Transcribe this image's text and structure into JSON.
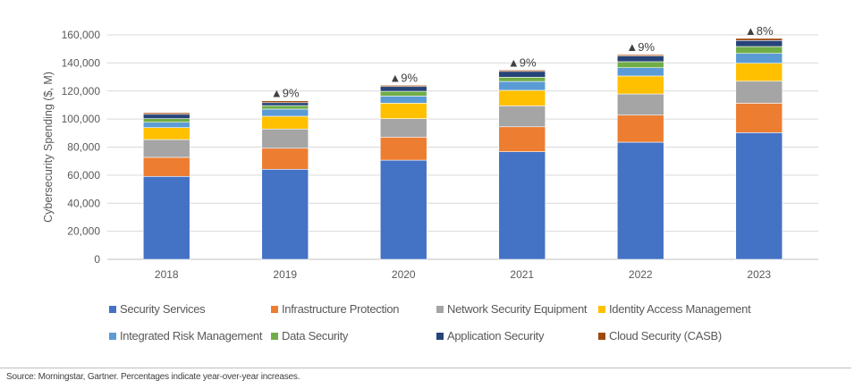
{
  "chart_data": {
    "type": "bar",
    "stacked": true,
    "categories": [
      "2018",
      "2019",
      "2020",
      "2021",
      "2022",
      "2023"
    ],
    "ylabel": "Cybersecurity Spending ($, M)",
    "ylim": [
      0,
      160000
    ],
    "yticks": [
      0,
      20000,
      40000,
      60000,
      80000,
      100000,
      120000,
      140000,
      160000
    ],
    "ytick_labels": [
      "0",
      "20,000",
      "40,000",
      "60,000",
      "80,000",
      "100,000",
      "120,000",
      "140,000",
      "160,000"
    ],
    "grid": true,
    "legend_position": "bottom",
    "series": [
      {
        "name": "Security Services",
        "color": "#4472C4",
        "values": [
          59100,
          64200,
          70700,
          76700,
          83500,
          90300
        ]
      },
      {
        "name": "Infrastructure Protection",
        "color": "#ED7D31",
        "values": [
          13600,
          15000,
          16400,
          17800,
          19300,
          21000
        ]
      },
      {
        "name": "Network Security Equipment",
        "color": "#A5A5A5",
        "values": [
          12700,
          13700,
          13200,
          14900,
          15100,
          15700
        ]
      },
      {
        "name": "Identity Access Management",
        "color": "#FFC000",
        "values": [
          8500,
          9100,
          11000,
          11100,
          12800,
          12800
        ]
      },
      {
        "name": "Integrated Risk Management",
        "color": "#5B9BD5",
        "values": [
          3800,
          5100,
          5100,
          6300,
          5900,
          7000
        ]
      },
      {
        "name": "Data Security",
        "color": "#70AD47",
        "values": [
          2600,
          2500,
          3400,
          3000,
          4300,
          4900
        ]
      },
      {
        "name": "Application Security",
        "color": "#264478",
        "values": [
          3100,
          2100,
          3400,
          4200,
          4000,
          4300
        ]
      },
      {
        "name": "Cloud Security (CASB)",
        "color": "#9E480E",
        "values": [
          1100,
          1300,
          900,
          900,
          1000,
          1500
        ]
      }
    ],
    "annotations": [
      "",
      "▲9%",
      "▲9%",
      "▲9%",
      "▲9%",
      "▲8%"
    ]
  },
  "footer": {
    "source": "Source: Morningstar, Gartner. Percentages indicate year-over-year increases."
  }
}
